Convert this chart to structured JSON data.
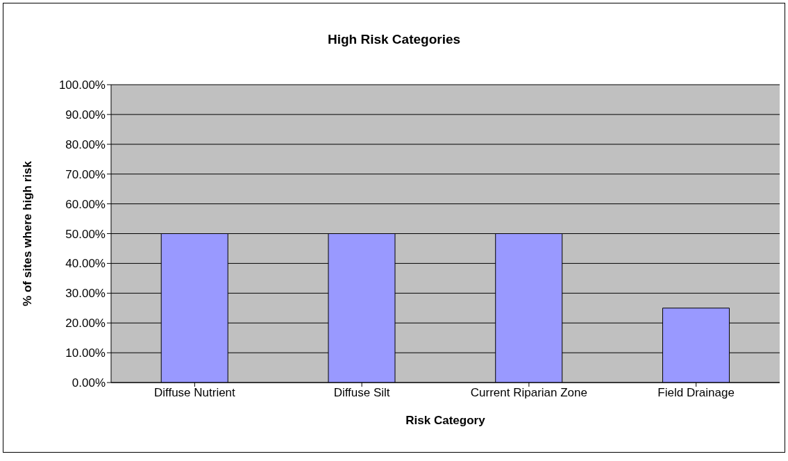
{
  "chart_data": {
    "type": "bar",
    "title": "High Risk Categories",
    "xlabel": "Risk Category",
    "ylabel": "% of sites where high risk",
    "categories": [
      "Diffuse Nutrient",
      "Diffuse Silt",
      "Current Riparian Zone",
      "Field Drainage"
    ],
    "values": [
      50,
      50,
      50,
      25
    ],
    "color": "#9999ff",
    "ylim": [
      0,
      100
    ],
    "yticks": [
      {
        "value": 0,
        "label": "0.00%"
      },
      {
        "value": 10,
        "label": "10.00%"
      },
      {
        "value": 20,
        "label": "20.00%"
      },
      {
        "value": 30,
        "label": "30.00%"
      },
      {
        "value": 40,
        "label": "40.00%"
      },
      {
        "value": 50,
        "label": "50.00%"
      },
      {
        "value": 60,
        "label": "60.00%"
      },
      {
        "value": 70,
        "label": "70.00%"
      },
      {
        "value": 80,
        "label": "80.00%"
      },
      {
        "value": 90,
        "label": "90.00%"
      },
      {
        "value": 100,
        "label": "100.00%"
      }
    ],
    "grid": "y",
    "legend": false
  }
}
